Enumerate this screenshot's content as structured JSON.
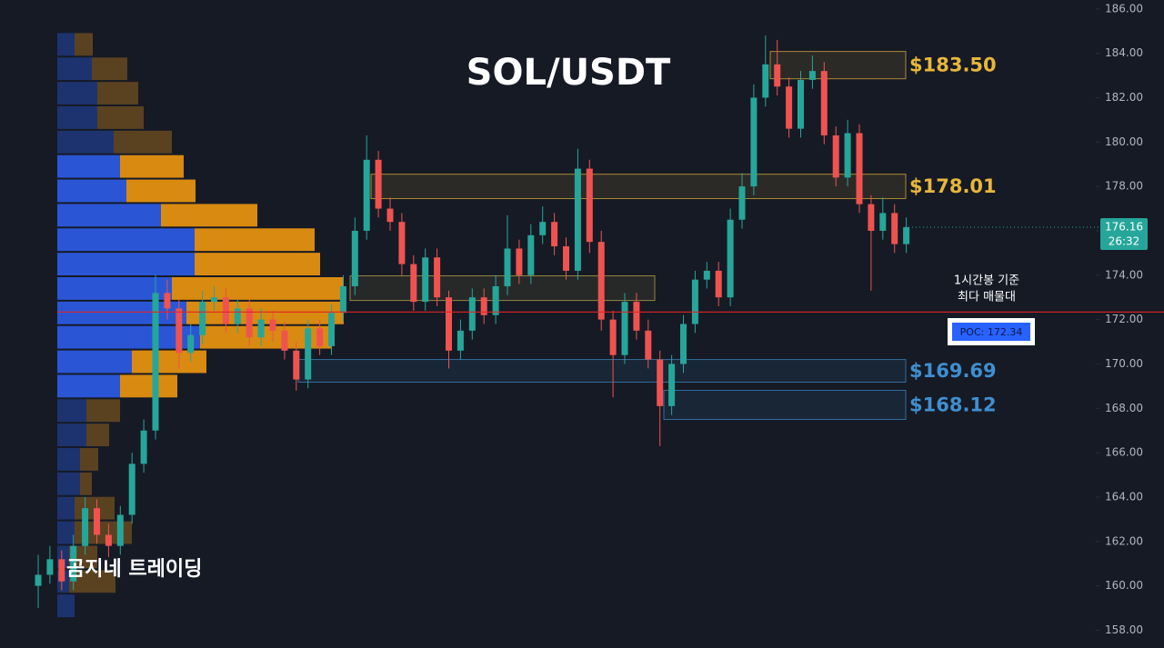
{
  "chart_data": {
    "type": "candlestick",
    "title": "SOL/USDT",
    "watermark": "곰지네 트레이딩",
    "ylim": [
      157.2,
      186.4
    ],
    "yticks": [
      {
        "value": 186,
        "label": "186.00"
      },
      {
        "value": 184,
        "label": "184.00"
      },
      {
        "value": 182,
        "label": "182.00"
      },
      {
        "value": 180,
        "label": "180.00"
      },
      {
        "value": 178,
        "label": "178.00"
      },
      {
        "value": 176,
        "label": "176.00"
      },
      {
        "value": 174,
        "label": "174.00"
      },
      {
        "value": 172,
        "label": "172.00"
      },
      {
        "value": 170,
        "label": "170.00"
      },
      {
        "value": 168,
        "label": "168.00"
      },
      {
        "value": 166,
        "label": "166.00"
      },
      {
        "value": 164,
        "label": "164.00"
      },
      {
        "value": 162,
        "label": "162.00"
      },
      {
        "value": 160,
        "label": "160.00"
      },
      {
        "value": 158,
        "label": "158.00"
      }
    ],
    "up_color": "#26a69a",
    "down_color": "#ef5350",
    "open": [
      160.0,
      160.5,
      161.2,
      160.2,
      161.8,
      163.5,
      162.3,
      161.8,
      163.2,
      165.5,
      167.0,
      173.2,
      172.5,
      170.5,
      171.3,
      172.8,
      173.0,
      171.8,
      172.5,
      171.2,
      172.0,
      171.5,
      170.6,
      169.3,
      171.6,
      170.8,
      172.3,
      173.5,
      176.0,
      179.2,
      177.0,
      176.4,
      174.5,
      172.8,
      174.8,
      173.0,
      170.6,
      171.5,
      173.0,
      172.2,
      173.5,
      175.2,
      174.0,
      175.8,
      176.4,
      175.3,
      174.2,
      178.8,
      175.5,
      172.0,
      170.4,
      172.8,
      171.5,
      170.2,
      168.1,
      170.0,
      171.8,
      173.8,
      174.2,
      173.0,
      176.5,
      178.0,
      182.0,
      183.5,
      182.5,
      180.6,
      182.8,
      183.2,
      180.3,
      178.4,
      180.4,
      177.2,
      176.0,
      176.8,
      175.4
    ],
    "high": [
      161.4,
      161.8,
      161.6,
      162.3,
      164.0,
      163.9,
      162.8,
      163.6,
      166.0,
      167.5,
      174.0,
      173.8,
      172.9,
      171.8,
      173.3,
      173.5,
      173.4,
      172.9,
      172.9,
      172.5,
      172.4,
      171.9,
      171.0,
      172.0,
      172.0,
      172.7,
      174.0,
      176.6,
      180.3,
      179.6,
      177.5,
      176.8,
      174.9,
      175.2,
      175.2,
      173.3,
      172.0,
      173.4,
      173.4,
      174.0,
      176.7,
      175.6,
      176.3,
      177.1,
      176.8,
      175.7,
      179.7,
      179.2,
      176.0,
      172.4,
      173.2,
      173.2,
      172.0,
      170.6,
      170.4,
      172.2,
      174.2,
      174.6,
      174.6,
      177.0,
      178.6,
      182.6,
      184.8,
      184.6,
      182.9,
      183.2,
      183.9,
      183.6,
      180.7,
      181.0,
      180.8,
      177.6,
      177.5,
      177.2,
      176.6
    ],
    "low": [
      159.0,
      160.1,
      159.8,
      159.8,
      161.4,
      161.9,
      161.3,
      161.4,
      162.8,
      165.1,
      166.6,
      172.0,
      169.8,
      170.1,
      170.9,
      172.4,
      171.4,
      171.4,
      170.8,
      170.8,
      171.0,
      170.2,
      168.8,
      168.9,
      170.4,
      170.4,
      171.9,
      173.1,
      175.6,
      176.6,
      176.0,
      174.0,
      172.4,
      172.4,
      172.6,
      169.8,
      170.2,
      171.1,
      171.8,
      171.8,
      173.1,
      173.6,
      173.6,
      175.4,
      174.9,
      173.8,
      173.8,
      175.0,
      171.5,
      168.5,
      170.0,
      171.1,
      169.8,
      166.3,
      167.7,
      169.6,
      171.4,
      173.4,
      172.6,
      172.6,
      176.1,
      177.6,
      181.6,
      182.1,
      180.2,
      180.2,
      182.4,
      179.9,
      178.0,
      178.0,
      176.8,
      173.3,
      175.6,
      175.0,
      175.0
    ],
    "close": [
      160.5,
      161.2,
      160.2,
      161.8,
      163.5,
      162.3,
      161.8,
      163.2,
      165.5,
      167.0,
      173.2,
      172.5,
      170.5,
      171.3,
      172.8,
      173.0,
      171.8,
      172.5,
      171.2,
      172.0,
      171.5,
      170.6,
      169.3,
      171.6,
      170.8,
      172.3,
      173.5,
      176.0,
      179.2,
      177.0,
      176.4,
      174.5,
      172.8,
      174.8,
      173.0,
      170.6,
      171.5,
      173.0,
      172.2,
      173.5,
      175.2,
      174.0,
      175.8,
      176.4,
      175.3,
      174.2,
      178.8,
      175.5,
      172.0,
      170.4,
      172.8,
      171.5,
      170.2,
      168.1,
      170.0,
      171.8,
      173.8,
      174.2,
      173.0,
      176.5,
      178.0,
      182.0,
      183.5,
      182.5,
      180.6,
      182.8,
      183.2,
      180.3,
      178.4,
      180.4,
      177.2,
      176.0,
      176.8,
      175.4,
      176.16
    ],
    "current_price": 176.16,
    "countdown": "26:32",
    "volume_profile": {
      "levels": [
        184.4,
        183.3,
        182.2,
        181.1,
        180.0,
        178.9,
        177.8,
        176.7,
        175.6,
        174.5,
        173.4,
        172.3,
        171.2,
        170.1,
        169.0,
        167.9,
        166.8,
        165.7,
        164.6,
        163.5,
        162.4,
        161.3,
        160.2,
        159.1
      ],
      "buy": [
        19,
        38,
        44,
        44,
        62,
        69,
        76,
        114,
        151,
        151,
        126,
        142,
        157,
        82,
        69,
        32,
        32,
        25,
        25,
        19,
        19,
        13,
        13,
        19
      ],
      "sell": [
        20,
        39,
        45,
        51,
        64,
        70,
        76,
        106,
        132,
        138,
        189,
        173,
        144,
        82,
        63,
        37,
        25,
        20,
        13,
        44,
        63,
        31,
        51,
        0
      ],
      "value_area": {
        "low": 169.0,
        "high": 178.9
      },
      "buy_color": "#2a56d6",
      "sell_color": "#d98a10",
      "buy_dim_color": "#1d3370",
      "sell_dim_color": "#5a4221"
    },
    "zones": [
      {
        "label": "$183.50",
        "top": 184.08,
        "bottom": 182.85,
        "color": "#e8b73a"
      },
      {
        "label": "$178.01",
        "top": 178.55,
        "bottom": 177.45,
        "color": "#e8b73a"
      },
      {
        "top": 173.97,
        "bottom": 172.86,
        "color": "#c9b14a"
      },
      {
        "label": "$169.69",
        "top": 170.2,
        "bottom": 169.18,
        "color": "#3f8fd0"
      },
      {
        "label": "$168.12",
        "top": 168.81,
        "bottom": 167.5,
        "color": "#3f8fd0"
      }
    ],
    "poc": {
      "value": 172.34,
      "label": "POC: 172.34",
      "color": "#e02424"
    },
    "annotation": [
      "1시간봉 기준",
      "최다 매물대"
    ]
  }
}
